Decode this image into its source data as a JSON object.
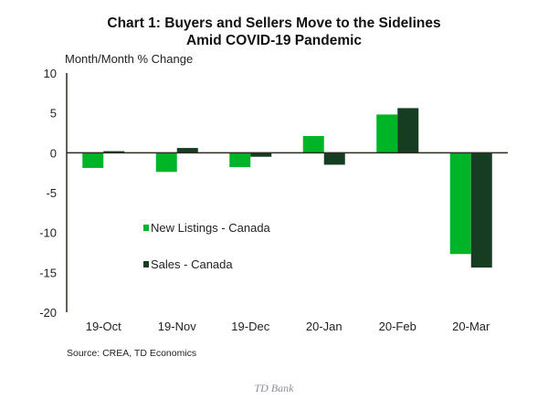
{
  "chart_data": {
    "type": "bar",
    "title": "Chart 1: Buyers and Sellers Move to the Sidelines",
    "title_line2": "Amid COVID-19 Pandemic",
    "ylabel": "Month/Month  % Change",
    "xlabel": "",
    "ylim": [
      -20,
      10
    ],
    "yticks": [
      10,
      5,
      0,
      -5,
      -10,
      -15,
      -20
    ],
    "categories": [
      "19-Oct",
      "19-Nov",
      "19-Dec",
      "20-Jan",
      "20-Feb",
      "20-Mar"
    ],
    "series": [
      {
        "name": "New Listings - Canada",
        "color": "#00b427",
        "values": [
          -1.9,
          -2.4,
          -1.8,
          2.1,
          4.8,
          -12.7
        ]
      },
      {
        "name": "Sales - Canada",
        "color": "#163d22",
        "values": [
          0.2,
          0.6,
          -0.5,
          -1.5,
          5.6,
          -14.4
        ]
      }
    ],
    "legend_position": "center-left",
    "grid": false,
    "source": "Source: CREA,  TD Economics"
  },
  "credit": "TD Bank"
}
